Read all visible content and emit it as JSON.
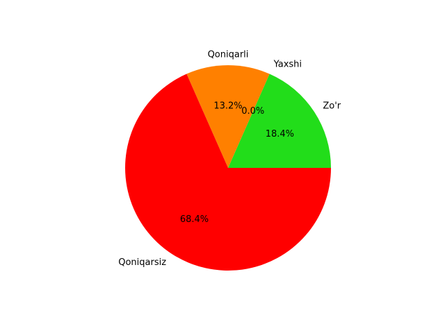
{
  "chart_data": {
    "type": "pie",
    "title": "",
    "labels": [
      "Zo'r",
      "Yaxshi",
      "Qoniqarli",
      "Qoniqarsiz"
    ],
    "values": [
      18.4,
      0.0,
      13.2,
      68.4
    ],
    "value_labels": [
      "18.4%",
      "0.0%",
      "13.2%",
      "68.4%"
    ],
    "colors": [
      "#22dd1a",
      "#ffff00",
      "#ff8000",
      "#ff0000"
    ],
    "start_angle_deg": 0,
    "direction": "counterclockwise",
    "legend": "none"
  }
}
